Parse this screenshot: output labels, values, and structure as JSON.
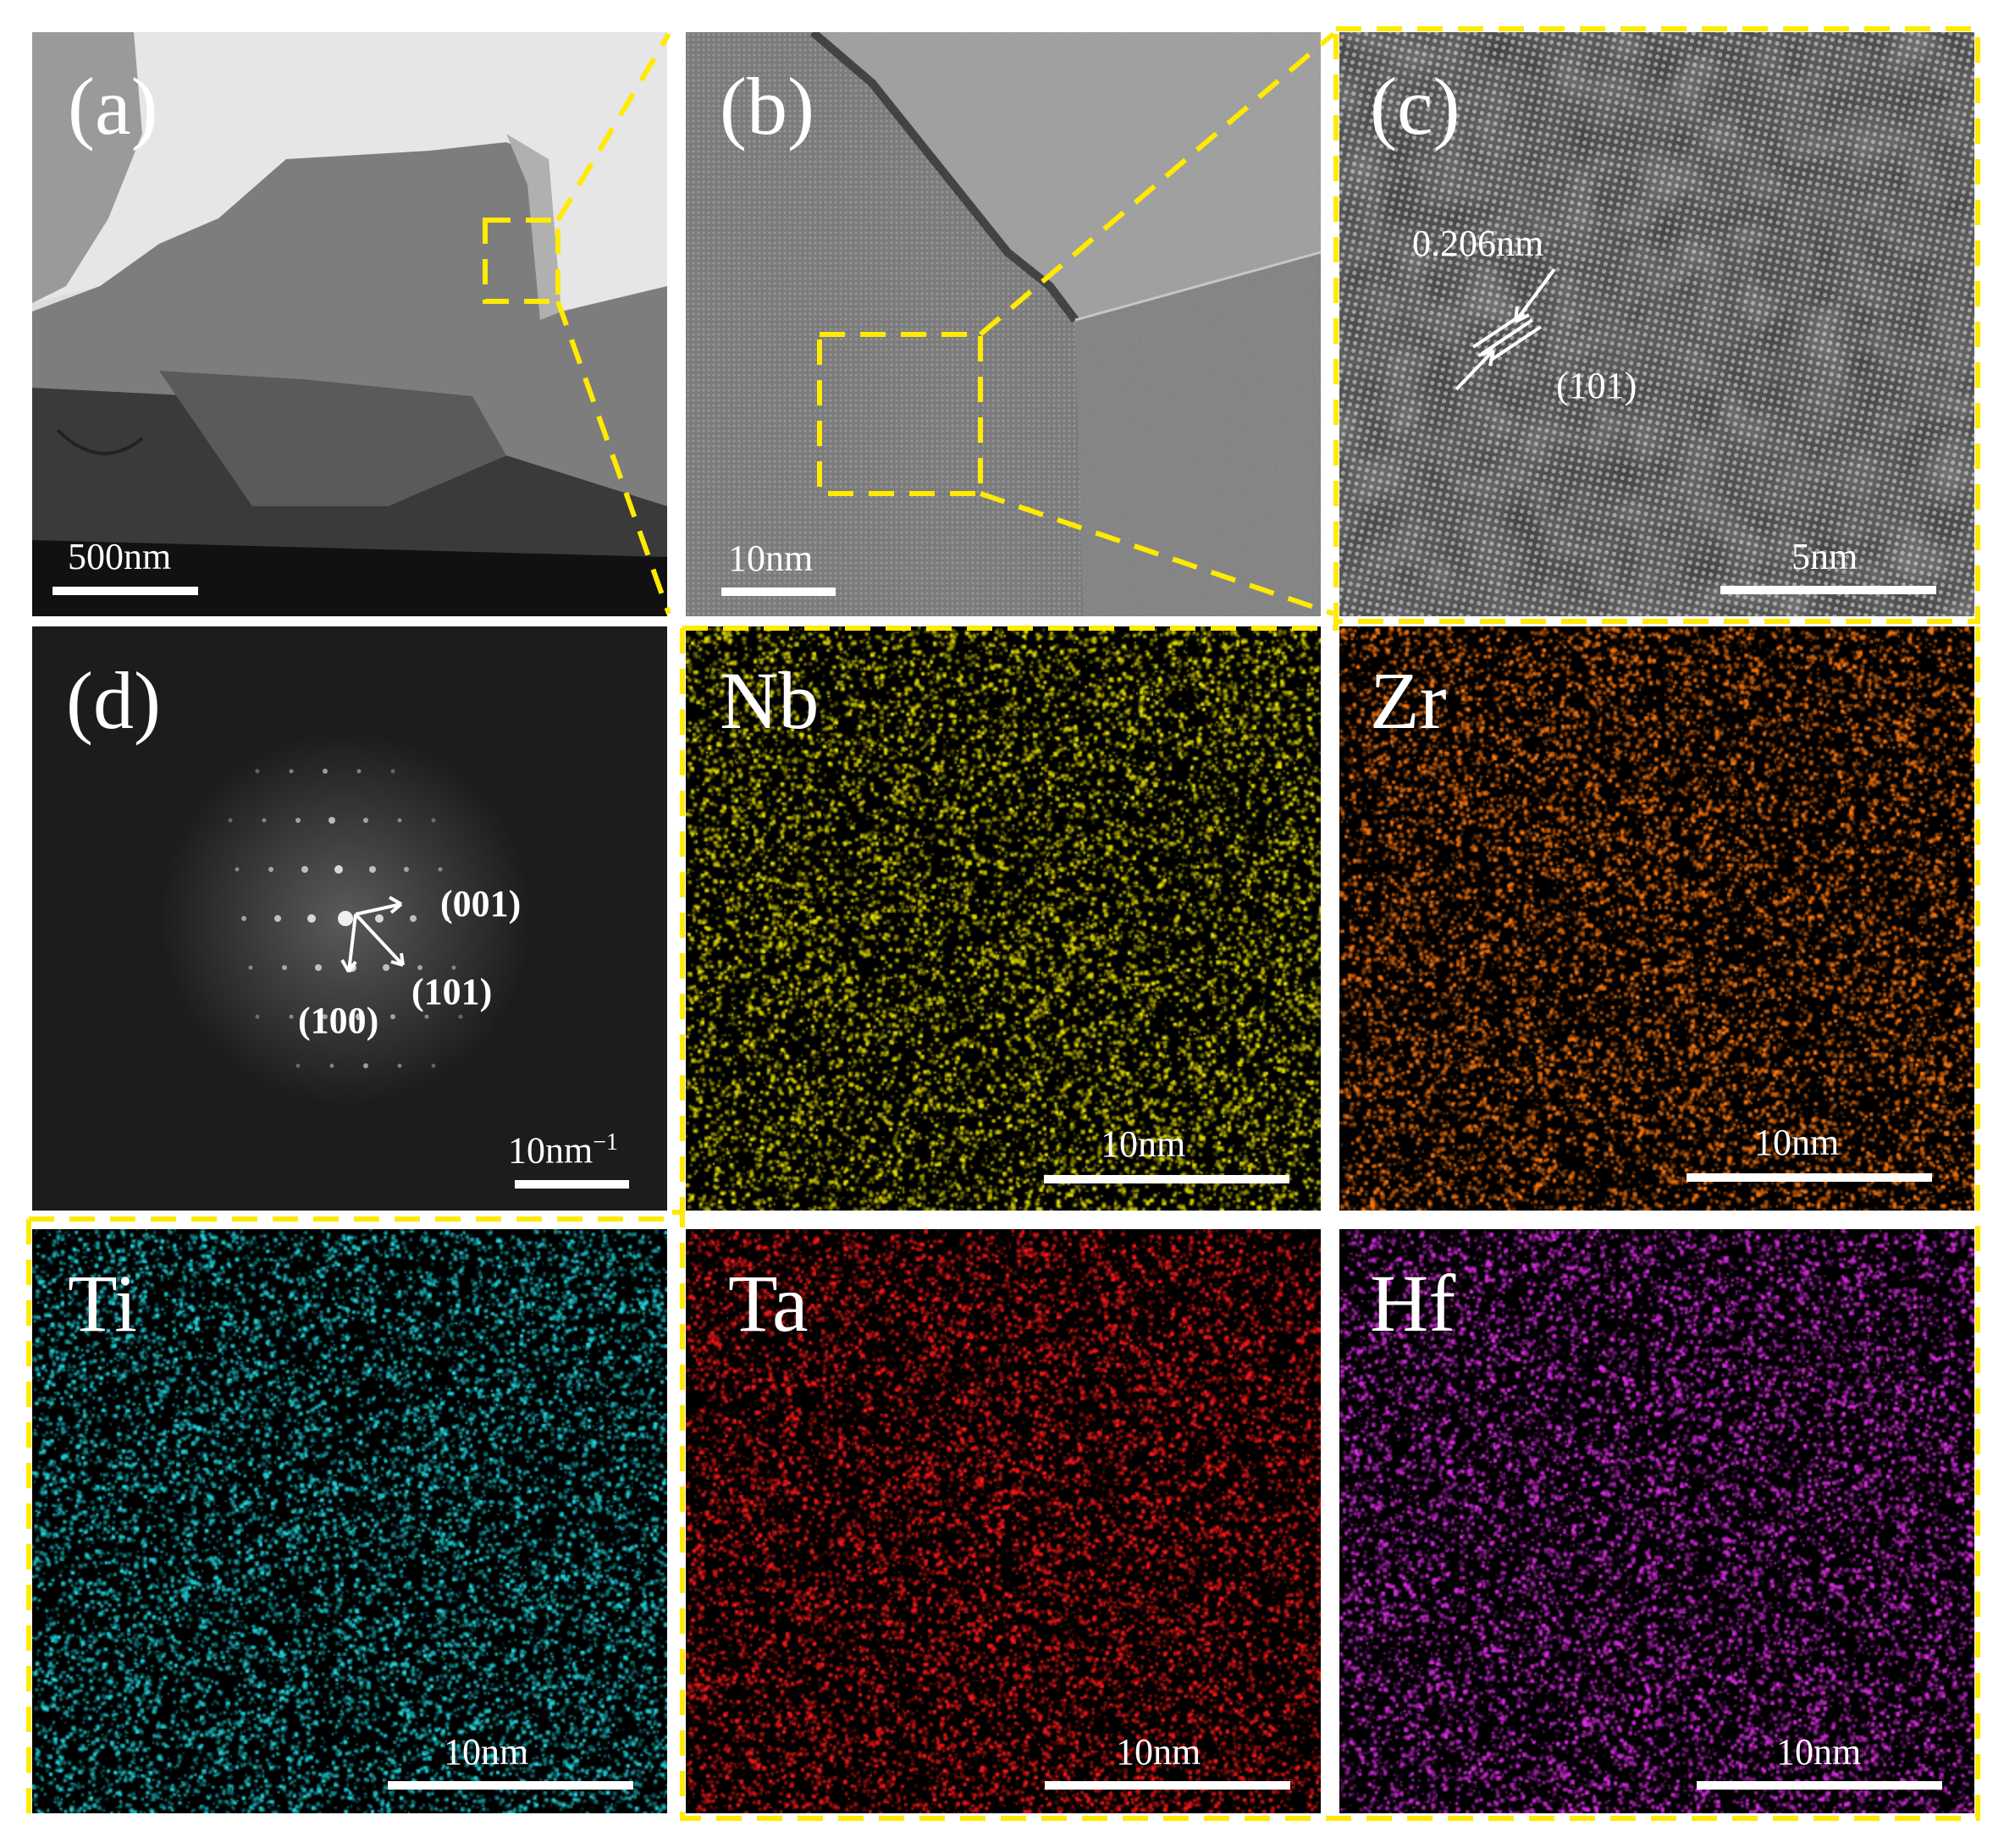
{
  "panels": {
    "a": {
      "label": "(a)",
      "scale": "500nm"
    },
    "b": {
      "label": "(b)",
      "scale": "10nm"
    },
    "c": {
      "label": "(c)",
      "scale": "5nm",
      "spacing": "0.206nm",
      "plane": "(101)"
    },
    "d": {
      "label": "(d)",
      "scale_base": "10nm",
      "scale_exp": "−1",
      "idx_001": "(001)",
      "idx_101": "(101)",
      "idx_100": "(100)"
    },
    "nb": {
      "element": "Nb",
      "scale": "10nm",
      "color": "#e6e000"
    },
    "zr": {
      "element": "Zr",
      "scale": "10nm",
      "color": "#ff7a10"
    },
    "ti": {
      "element": "Ti",
      "scale": "10nm",
      "color": "#22d8e0"
    },
    "ta": {
      "element": "Ta",
      "scale": "10nm",
      "color": "#ff1a1a"
    },
    "hf": {
      "element": "Hf",
      "scale": "10nm",
      "color": "#e030e8"
    }
  },
  "colors": {
    "highlight": "#ffea00",
    "text": "#ffffff"
  }
}
